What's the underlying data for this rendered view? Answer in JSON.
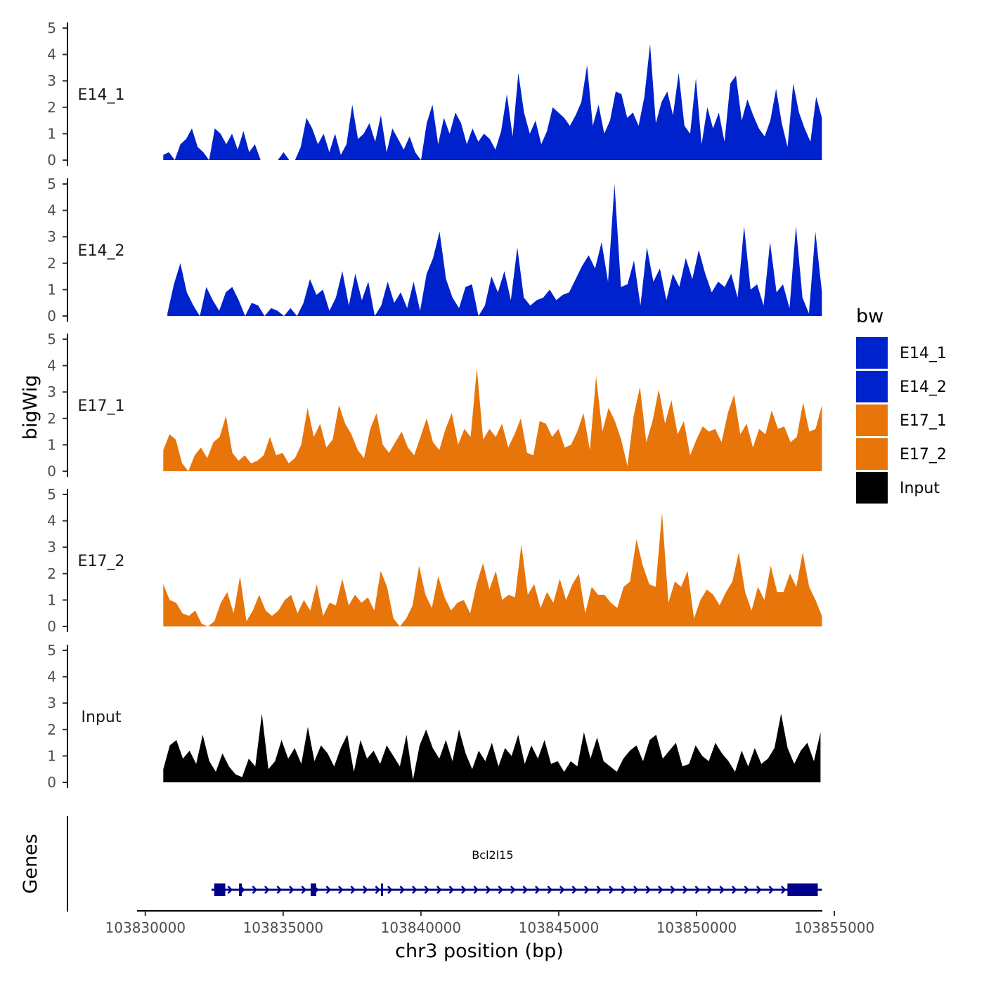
{
  "chart_data": {
    "type": "area",
    "chromosome": "chr3",
    "xlabel": "chr3 position (bp)",
    "ylabel": "bigWig",
    "xlim": [
      103828500,
      103855000
    ],
    "x_ticks": [
      103830000,
      103835000,
      103840000,
      103845000,
      103850000,
      103855000
    ],
    "x_tick_labels": [
      "103830000",
      "103835000",
      "103840000",
      "103845000",
      "103850000",
      "103855000"
    ],
    "ylim": [
      0,
      5
    ],
    "y_ticks": [
      0,
      1,
      2,
      3,
      4,
      5
    ],
    "y_tick_labels": [
      "0",
      "1",
      "2",
      "3",
      "4",
      "5"
    ],
    "legend": {
      "title": "bw",
      "position": "right",
      "entries": [
        {
          "label": "E14_1",
          "color": "#0022CC"
        },
        {
          "label": "E14_2",
          "color": "#0022CC"
        },
        {
          "label": "E17_1",
          "color": "#E87509"
        },
        {
          "label": "E17_2",
          "color": "#E87509"
        },
        {
          "label": "Input",
          "color": "#000000"
        }
      ]
    },
    "tracks": [
      {
        "name": "E14_1",
        "color": "#0022CC",
        "x_start": 103830650,
        "x_end": 103854550,
        "values": [
          0.2,
          0.3,
          0.0,
          0.6,
          0.8,
          1.2,
          0.5,
          0.3,
          0.0,
          1.2,
          1.0,
          0.6,
          1.0,
          0.4,
          1.1,
          0.3,
          0.6,
          0.0,
          0.0,
          0.0,
          0.0,
          0.3,
          0.0,
          0.0,
          0.5,
          1.6,
          1.2,
          0.6,
          1.0,
          0.3,
          1.0,
          0.2,
          0.6,
          2.1,
          0.8,
          1.0,
          1.4,
          0.7,
          1.7,
          0.3,
          1.2,
          0.8,
          0.4,
          0.9,
          0.3,
          0.0,
          1.4,
          2.1,
          0.6,
          1.6,
          1.0,
          1.8,
          1.4,
          0.6,
          1.2,
          0.7,
          1.0,
          0.8,
          0.4,
          1.1,
          2.5,
          0.9,
          3.3,
          1.8,
          1.0,
          1.5,
          0.6,
          1.1,
          2.0,
          1.8,
          1.6,
          1.3,
          1.7,
          2.2,
          3.6,
          1.3,
          2.1,
          1.0,
          1.5,
          2.6,
          2.5,
          1.6,
          1.8,
          1.3,
          2.4,
          4.4,
          1.4,
          2.2,
          2.6,
          1.7,
          3.3,
          1.3,
          1.0,
          3.1,
          0.6,
          2.0,
          1.2,
          1.8,
          0.7,
          2.9,
          3.2,
          1.5,
          2.3,
          1.7,
          1.2,
          0.9,
          1.5,
          2.7,
          1.4,
          0.5,
          2.9,
          1.8,
          1.2,
          0.7,
          2.4,
          1.6
        ]
      },
      {
        "name": "E14_2",
        "color": "#0022CC",
        "x_start": 103830800,
        "x_end": 103854550,
        "values": [
          0.1,
          1.2,
          2.0,
          0.9,
          0.4,
          0.0,
          1.1,
          0.6,
          0.2,
          0.9,
          1.1,
          0.6,
          0.0,
          0.5,
          0.4,
          0.0,
          0.3,
          0.2,
          0.0,
          0.3,
          0.0,
          0.5,
          1.4,
          0.8,
          1.0,
          0.2,
          0.7,
          1.7,
          0.4,
          1.6,
          0.6,
          1.3,
          0.0,
          0.4,
          1.3,
          0.5,
          0.9,
          0.3,
          1.3,
          0.2,
          1.6,
          2.2,
          3.2,
          1.4,
          0.7,
          0.3,
          1.1,
          1.2,
          0.0,
          0.4,
          1.5,
          0.9,
          1.7,
          0.6,
          2.6,
          0.7,
          0.4,
          0.6,
          0.7,
          1.0,
          0.6,
          0.8,
          0.9,
          1.4,
          1.9,
          2.3,
          1.8,
          2.8,
          1.3,
          5.0,
          1.1,
          1.2,
          2.1,
          0.4,
          2.6,
          1.3,
          1.8,
          0.6,
          1.6,
          1.1,
          2.2,
          1.4,
          2.5,
          1.6,
          0.9,
          1.3,
          1.1,
          1.6,
          0.7,
          3.4,
          1.0,
          1.2,
          0.4,
          2.8,
          0.9,
          1.2,
          0.3,
          3.4,
          0.7,
          0.1,
          3.2,
          0.9
        ]
      },
      {
        "name": "E17_1",
        "color": "#E87509",
        "x_start": 103830650,
        "x_end": 103854550,
        "values": [
          0.8,
          1.4,
          1.2,
          0.3,
          0.0,
          0.6,
          0.9,
          0.5,
          1.1,
          1.3,
          2.1,
          0.7,
          0.4,
          0.6,
          0.3,
          0.4,
          0.6,
          1.3,
          0.6,
          0.7,
          0.3,
          0.5,
          1.0,
          2.4,
          1.3,
          1.8,
          0.9,
          1.2,
          2.5,
          1.8,
          1.4,
          0.8,
          0.5,
          1.6,
          2.2,
          1.0,
          0.7,
          1.1,
          1.5,
          0.9,
          0.6,
          1.3,
          2.0,
          1.1,
          0.8,
          1.6,
          2.2,
          1.0,
          1.6,
          1.3,
          3.9,
          1.2,
          1.6,
          1.3,
          1.8,
          0.9,
          1.4,
          2.0,
          0.7,
          0.6,
          1.9,
          1.8,
          1.3,
          1.6,
          0.9,
          1.0,
          1.5,
          2.2,
          0.8,
          3.6,
          1.5,
          2.4,
          1.9,
          1.2,
          0.2,
          2.1,
          3.2,
          1.1,
          1.9,
          3.1,
          1.8,
          2.7,
          1.4,
          1.9,
          0.6,
          1.2,
          1.7,
          1.5,
          1.6,
          1.1,
          2.2,
          2.9,
          1.4,
          1.8,
          0.9,
          1.6,
          1.4,
          2.3,
          1.6,
          1.7,
          1.1,
          1.3,
          2.6,
          1.5,
          1.6,
          2.5
        ]
      },
      {
        "name": "E17_2",
        "color": "#E87509",
        "x_start": 103830650,
        "x_end": 103854550,
        "values": [
          1.6,
          1.0,
          0.9,
          0.5,
          0.4,
          0.6,
          0.1,
          0.0,
          0.2,
          0.9,
          1.3,
          0.5,
          1.9,
          0.2,
          0.6,
          1.2,
          0.6,
          0.4,
          0.6,
          1.0,
          1.2,
          0.5,
          1.0,
          0.6,
          1.6,
          0.4,
          0.9,
          0.8,
          1.8,
          0.8,
          1.2,
          0.9,
          1.1,
          0.6,
          2.1,
          1.5,
          0.3,
          0.0,
          0.3,
          0.8,
          2.3,
          1.2,
          0.7,
          1.9,
          1.1,
          0.6,
          0.9,
          1.0,
          0.5,
          1.6,
          2.4,
          1.4,
          2.1,
          1.0,
          1.2,
          1.1,
          3.1,
          1.2,
          1.6,
          0.7,
          1.3,
          0.9,
          1.8,
          1.0,
          1.6,
          2.0,
          0.5,
          1.5,
          1.2,
          1.2,
          0.9,
          0.7,
          1.5,
          1.7,
          3.3,
          2.3,
          1.6,
          1.5,
          4.3,
          0.9,
          1.7,
          1.5,
          2.1,
          0.3,
          1.0,
          1.4,
          1.2,
          0.8,
          1.3,
          1.7,
          2.8,
          1.3,
          0.6,
          1.5,
          1.0,
          2.3,
          1.3,
          1.3,
          2.0,
          1.5,
          2.8,
          1.5,
          1.0,
          0.4
        ]
      },
      {
        "name": "Input",
        "color": "#000000",
        "x_start": 103830650,
        "x_end": 103854500,
        "values": [
          0.5,
          1.4,
          1.6,
          0.9,
          1.2,
          0.7,
          1.8,
          0.8,
          0.4,
          1.1,
          0.6,
          0.3,
          0.2,
          0.9,
          0.6,
          2.6,
          0.5,
          0.8,
          1.6,
          0.9,
          1.3,
          0.7,
          2.1,
          0.8,
          1.4,
          1.1,
          0.6,
          1.3,
          1.8,
          0.4,
          1.6,
          0.9,
          1.2,
          0.7,
          1.4,
          1.0,
          0.6,
          1.8,
          0.1,
          1.4,
          2.0,
          1.3,
          0.9,
          1.6,
          0.8,
          2.0,
          1.1,
          0.5,
          1.2,
          0.8,
          1.5,
          0.6,
          1.3,
          1.0,
          1.8,
          0.7,
          1.4,
          0.9,
          1.6,
          0.7,
          0.8,
          0.4,
          0.8,
          0.6,
          1.9,
          0.9,
          1.7,
          0.8,
          0.6,
          0.4,
          0.9,
          1.2,
          1.4,
          0.8,
          1.6,
          1.8,
          0.9,
          1.2,
          1.5,
          0.6,
          0.7,
          1.4,
          1.0,
          0.8,
          1.5,
          1.1,
          0.8,
          0.4,
          1.2,
          0.6,
          1.3,
          0.7,
          0.9,
          1.3,
          2.6,
          1.3,
          0.7,
          1.2,
          1.5,
          0.8,
          1.9
        ]
      }
    ],
    "genes_panel": {
      "ylabel": "Genes",
      "genes": [
        {
          "name": "Bcl2l15",
          "strand": "+",
          "start": 103832400,
          "end": 103854550,
          "exons": [
            [
              103832500,
              103832900
            ],
            [
              103833400,
              103833500
            ],
            [
              103836000,
              103836200
            ],
            [
              103838550,
              103838600
            ],
            [
              103853300,
              103854400
            ]
          ]
        }
      ]
    }
  }
}
